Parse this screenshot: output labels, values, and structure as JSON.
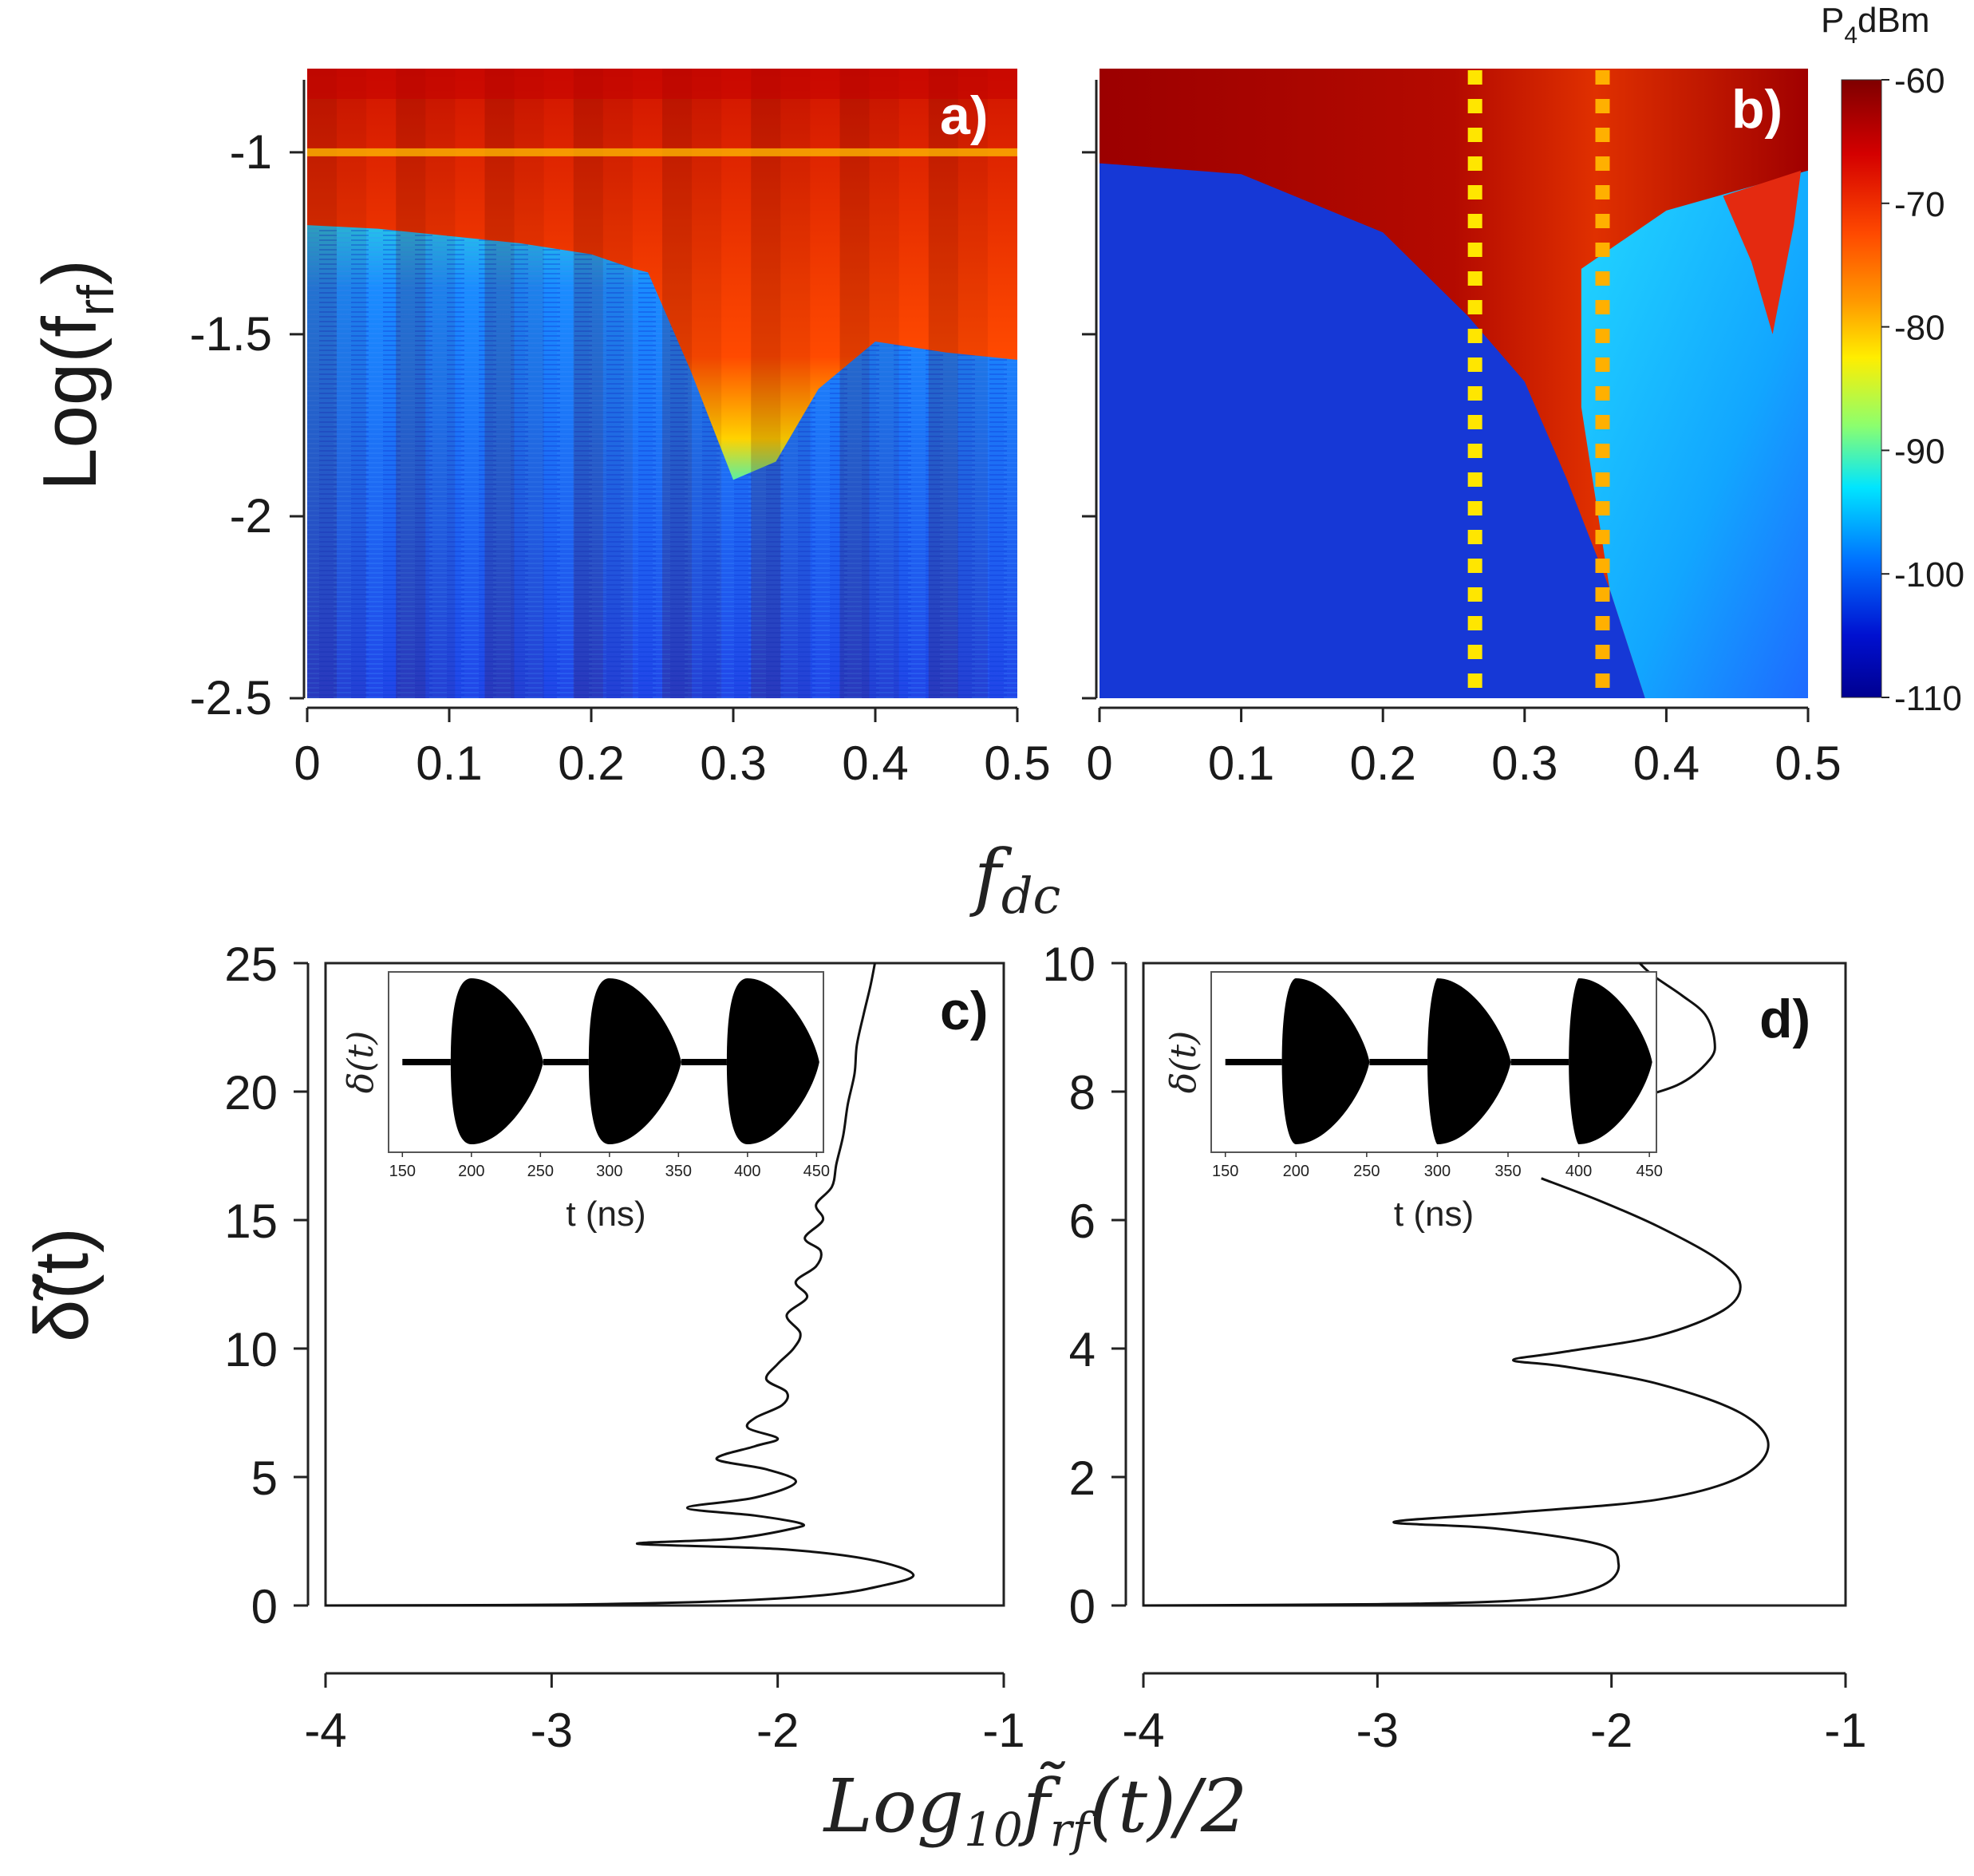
{
  "figure": {
    "shared_xlabel_top": "f_dc",
    "shared_xlabel_bottom": "Log10 f̃rf(t)/2"
  },
  "chart_data": [
    {
      "panel": "a)",
      "type": "heatmap",
      "xlabel": "",
      "ylabel": "Log(f_rf)",
      "xlim": [
        0,
        0.5
      ],
      "ylim": [
        -2.5,
        -0.77
      ],
      "xticks": [
        "0",
        "0.1",
        "0.2",
        "0.3",
        "0.4",
        "0.5"
      ],
      "yticks": [
        "-1",
        "-1.5",
        "-2",
        "-2.5"
      ],
      "colorbar": "shared",
      "columns": 24,
      "upper_band_boundary": [
        {
          "x": 0.0,
          "y": -1.2
        },
        {
          "x": 0.05,
          "y": -1.21
        },
        {
          "x": 0.1,
          "y": -1.23
        },
        {
          "x": 0.15,
          "y": -1.25
        },
        {
          "x": 0.2,
          "y": -1.28
        },
        {
          "x": 0.23,
          "y": -1.32
        }
      ],
      "tongue_boundary": [
        {
          "x": 0.24,
          "y": -1.33
        },
        {
          "x": 0.27,
          "y": -1.6
        },
        {
          "x": 0.3,
          "y": -1.9
        },
        {
          "x": 0.33,
          "y": -1.85
        },
        {
          "x": 0.36,
          "y": -1.65
        },
        {
          "x": 0.4,
          "y": -1.52
        },
        {
          "x": 0.45,
          "y": -1.55
        },
        {
          "x": 0.5,
          "y": -1.57
        }
      ]
    },
    {
      "panel": "b)",
      "type": "heatmap",
      "xlabel": "",
      "ylabel": "",
      "xlim": [
        0,
        0.5
      ],
      "ylim": [
        -2.5,
        -0.77
      ],
      "xticks": [
        "0",
        "0.1",
        "0.2",
        "0.3",
        "0.4",
        "0.5"
      ],
      "colorbar": {
        "title": "P4dBm",
        "ticks": [
          "-60",
          "-70",
          "-80",
          "-90",
          "-100",
          "-110"
        ],
        "range": [
          -110,
          -60
        ],
        "colors": [
          "#7f0000",
          "#ff1a00",
          "#ff8c00",
          "#ffff00",
          "#80ff80",
          "#00e5ff",
          "#0080ff",
          "#0000b0",
          "#00008a"
        ]
      },
      "dashed_lines": [
        {
          "x": 0.265,
          "color": "#ffe600"
        },
        {
          "x": 0.355,
          "color": "#ffb000"
        }
      ],
      "blue_region_boundary": [
        {
          "x": 0.0,
          "y": -1.03
        },
        {
          "x": 0.1,
          "y": -1.06
        },
        {
          "x": 0.2,
          "y": -1.22
        },
        {
          "x": 0.26,
          "y": -1.45
        },
        {
          "x": 0.3,
          "y": -1.63
        },
        {
          "x": 0.33,
          "y": -1.9
        },
        {
          "x": 0.36,
          "y": -2.2
        },
        {
          "x": 0.385,
          "y": -2.5
        }
      ]
    },
    {
      "panel": "c)",
      "type": "line",
      "xlabel": "",
      "ylabel": "δ̃(t)",
      "xlim": [
        -4,
        -1
      ],
      "ylim": [
        0,
        25
      ],
      "xticks": [
        "-4",
        "-3",
        "-2",
        "-1"
      ],
      "yticks": [
        "0",
        "5",
        "10",
        "15",
        "20",
        "25"
      ],
      "series": [
        {
          "points": [
            [
              -4.0,
              0.0
            ],
            [
              -3.0,
              0.03
            ],
            [
              -2.3,
              0.15
            ],
            [
              -1.8,
              0.4
            ],
            [
              -1.55,
              0.75
            ],
            [
              -1.4,
              1.2
            ],
            [
              -1.6,
              1.8
            ],
            [
              -2.0,
              2.2
            ],
            [
              -2.62,
              2.4
            ],
            [
              -2.2,
              2.6
            ],
            [
              -1.93,
              3.0
            ],
            [
              -1.9,
              3.2
            ],
            [
              -2.1,
              3.5
            ],
            [
              -2.4,
              3.8
            ],
            [
              -2.1,
              4.2
            ],
            [
              -1.92,
              4.8
            ],
            [
              -2.05,
              5.3
            ],
            [
              -2.27,
              5.7
            ],
            [
              -2.1,
              6.2
            ],
            [
              -2.0,
              6.5
            ],
            [
              -2.13,
              6.9
            ],
            [
              -2.1,
              7.3
            ],
            [
              -1.98,
              7.8
            ],
            [
              -1.96,
              8.3
            ],
            [
              -2.05,
              8.8
            ],
            [
              -2.0,
              9.4
            ],
            [
              -1.93,
              10.0
            ],
            [
              -1.9,
              10.6
            ],
            [
              -1.96,
              11.3
            ],
            [
              -1.87,
              12.0
            ],
            [
              -1.92,
              12.6
            ],
            [
              -1.83,
              13.2
            ],
            [
              -1.81,
              13.8
            ],
            [
              -1.88,
              14.3
            ],
            [
              -1.8,
              15.0
            ],
            [
              -1.83,
              15.6
            ],
            [
              -1.76,
              16.3
            ],
            [
              -1.74,
              17.2
            ],
            [
              -1.71,
              18.3
            ],
            [
              -1.69,
              19.5
            ],
            [
              -1.66,
              20.7
            ],
            [
              -1.65,
              21.8
            ],
            [
              -1.62,
              23.0
            ],
            [
              -1.59,
              24.1
            ],
            [
              -1.57,
              25.0
            ]
          ]
        }
      ],
      "inset": {
        "xlabel": "t (ns)",
        "ylabel": "δ(t)",
        "xlim": [
          140,
          455
        ],
        "xticks": [
          "150",
          "200",
          "250",
          "300",
          "350",
          "400",
          "450"
        ],
        "bursts": [
          {
            "start": 185,
            "peak": 200,
            "end": 252
          },
          {
            "start": 285,
            "peak": 300,
            "end": 352
          },
          {
            "start": 385,
            "peak": 400,
            "end": 452
          }
        ],
        "flat_segments": [
          [
            150,
            185
          ],
          [
            252,
            285
          ],
          [
            352,
            385
          ]
        ]
      }
    },
    {
      "panel": "d)",
      "type": "line",
      "xlabel": "",
      "ylabel": "",
      "xlim": [
        -4,
        -1
      ],
      "ylim": [
        0,
        10
      ],
      "xticks": [
        "-4",
        "-3",
        "-2",
        "-1"
      ],
      "yticks": [
        "0",
        "2",
        "4",
        "6",
        "8",
        "10"
      ],
      "series": [
        {
          "points": [
            [
              -4.0,
              0.0
            ],
            [
              -3.0,
              0.02
            ],
            [
              -2.5,
              0.06
            ],
            [
              -2.2,
              0.15
            ],
            [
              -2.02,
              0.35
            ],
            [
              -1.97,
              0.65
            ],
            [
              -2.05,
              0.95
            ],
            [
              -2.5,
              1.2
            ],
            [
              -2.93,
              1.3
            ],
            [
              -2.4,
              1.45
            ],
            [
              -1.8,
              1.65
            ],
            [
              -1.45,
              2.0
            ],
            [
              -1.33,
              2.5
            ],
            [
              -1.45,
              3.0
            ],
            [
              -1.8,
              3.45
            ],
            [
              -2.2,
              3.72
            ],
            [
              -2.42,
              3.82
            ],
            [
              -2.2,
              3.95
            ],
            [
              -1.8,
              4.2
            ],
            [
              -1.52,
              4.6
            ],
            [
              -1.45,
              5.0
            ],
            [
              -1.55,
              5.4
            ],
            [
              -1.8,
              5.9
            ],
            [
              -2.05,
              6.3
            ],
            [
              -2.3,
              6.65
            ]
          ]
        },
        {
          "points": [
            [
              -2.0,
              7.8
            ],
            [
              -1.72,
              8.1
            ],
            [
              -1.58,
              8.5
            ],
            [
              -1.56,
              8.8
            ],
            [
              -1.6,
              9.2
            ],
            [
              -1.7,
              9.5
            ],
            [
              -1.82,
              9.8
            ],
            [
              -1.88,
              10.0
            ]
          ]
        }
      ],
      "inset": {
        "xlabel": "t (ns)",
        "ylabel": "δ(t)",
        "xlim": [
          140,
          455
        ],
        "xticks": [
          "150",
          "200",
          "250",
          "300",
          "350",
          "400",
          "450"
        ],
        "bursts": [
          {
            "start": 190,
            "peak": 200,
            "end": 252
          },
          {
            "start": 293,
            "peak": 300,
            "end": 352
          },
          {
            "start": 393,
            "peak": 400,
            "end": 452
          }
        ],
        "flat_segments": [
          [
            150,
            190
          ],
          [
            252,
            293
          ],
          [
            352,
            393
          ]
        ]
      }
    }
  ]
}
